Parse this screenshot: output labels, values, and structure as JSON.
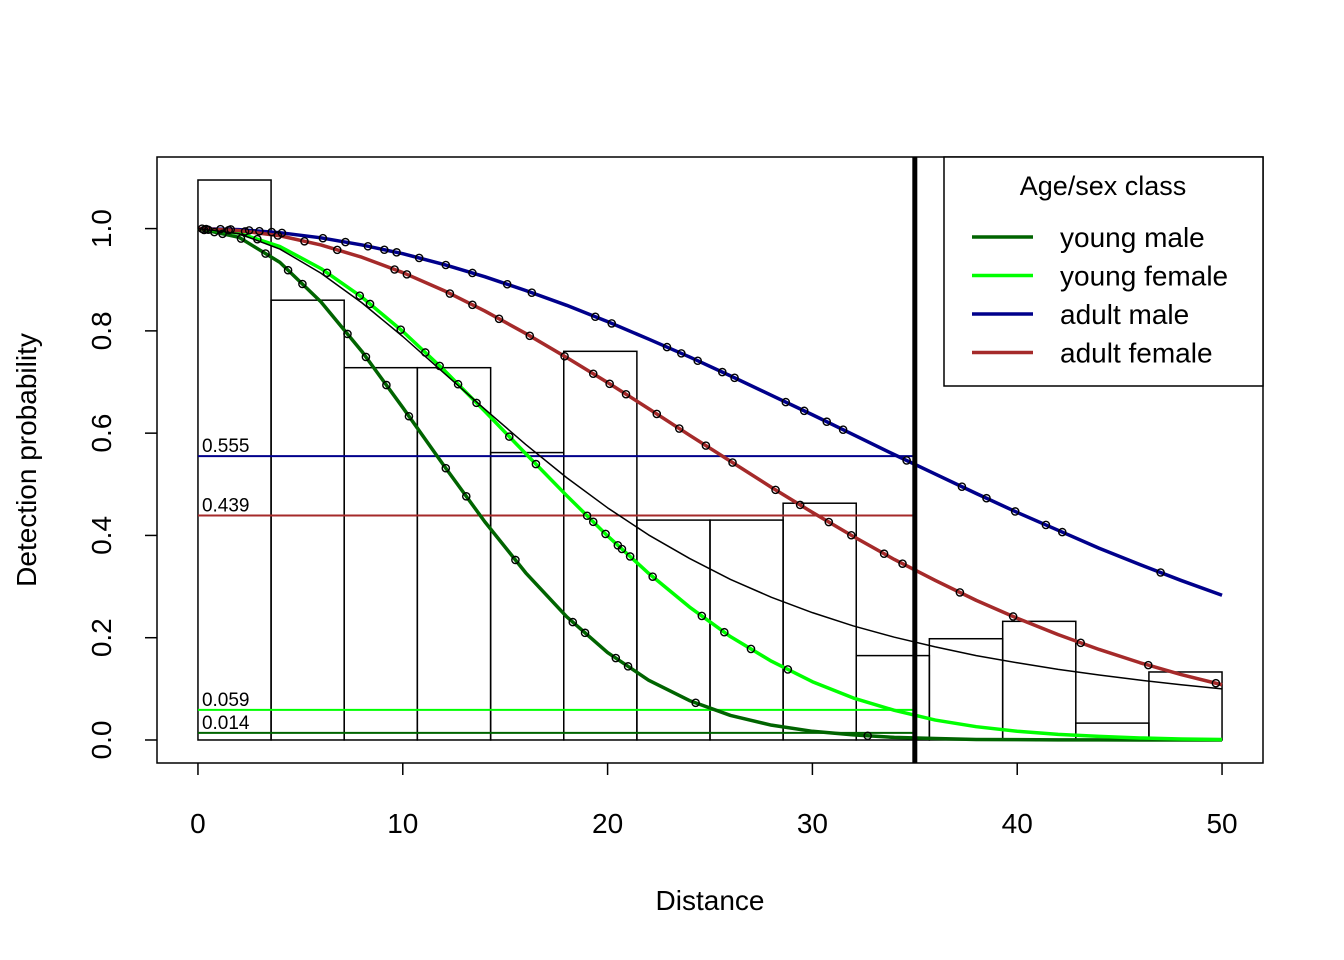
{
  "chart_data": {
    "type": "line",
    "title": "",
    "xlabel": "Distance",
    "ylabel": "Detection probability",
    "xlim": [
      -2,
      52
    ],
    "ylim": [
      -0.045,
      1.14
    ],
    "x_ticks": [
      0,
      10,
      20,
      30,
      40,
      50
    ],
    "x_tick_labels": [
      "0",
      "10",
      "20",
      "30",
      "40",
      "50"
    ],
    "y_ticks": [
      0.0,
      0.2,
      0.4,
      0.6,
      0.8,
      1.0
    ],
    "y_tick_labels": [
      "0.0",
      "0.2",
      "0.4",
      "0.6",
      "0.8",
      "1.0"
    ],
    "grid": false,
    "legend": {
      "title": "Age/sex class",
      "placement": "top-right",
      "entries": [
        "young male",
        "young female",
        "adult male",
        "adult female"
      ]
    },
    "colors": {
      "young_male": "#006400",
      "young_female": "#00ff00",
      "adult_male": "#00008b",
      "adult_female": "#a52a2a",
      "average": "#000000",
      "truncation": "#000000"
    },
    "histogram": {
      "bin_edges": [
        0,
        3.57,
        7.14,
        10.71,
        14.29,
        17.86,
        21.43,
        25.0,
        28.57,
        32.14,
        35.71,
        39.29,
        42.86,
        46.43,
        50.0
      ],
      "heights": [
        1.095,
        0.86,
        0.728,
        0.728,
        0.562,
        0.76,
        0.43,
        0.43,
        0.463,
        0.165,
        0.198,
        0.232,
        0.033,
        0.133
      ]
    },
    "series": [
      {
        "name": "young male",
        "color": "#006400",
        "x": [
          0,
          2,
          4,
          6,
          8,
          10,
          12,
          14,
          16,
          18,
          20,
          22,
          24,
          26,
          28,
          30,
          32,
          34,
          36,
          38,
          40,
          42,
          44,
          46,
          48,
          50
        ],
        "y": [
          1.0,
          0.983,
          0.934,
          0.857,
          0.76,
          0.65,
          0.537,
          0.427,
          0.327,
          0.241,
          0.171,
          0.117,
          0.077,
          0.048,
          0.029,
          0.017,
          0.01,
          0.005,
          0.003,
          0.001,
          0.0007,
          0.0003,
          0.0001,
          0.0,
          0.0,
          0.0
        ]
      },
      {
        "name": "young female",
        "color": "#00ff00",
        "x": [
          0,
          2,
          4,
          6,
          8,
          10,
          12,
          14,
          16,
          18,
          20,
          22,
          24,
          26,
          28,
          30,
          32,
          34,
          36,
          38,
          40,
          42,
          44,
          46,
          48,
          50
        ],
        "y": [
          1.0,
          0.991,
          0.965,
          0.922,
          0.866,
          0.799,
          0.724,
          0.643,
          0.56,
          0.478,
          0.399,
          0.326,
          0.26,
          0.202,
          0.154,
          0.114,
          0.082,
          0.058,
          0.039,
          0.026,
          0.017,
          0.011,
          0.007,
          0.004,
          0.002,
          0.001
        ]
      },
      {
        "name": "adult male",
        "color": "#00008b",
        "x": [
          0,
          2,
          4,
          6,
          8,
          10,
          12,
          14,
          16,
          18,
          20,
          22,
          24,
          26,
          28,
          30,
          32,
          34,
          36,
          38,
          40,
          42,
          44,
          46,
          48,
          50
        ],
        "y": [
          1.0,
          0.998,
          0.992,
          0.982,
          0.968,
          0.951,
          0.93,
          0.906,
          0.879,
          0.85,
          0.818,
          0.784,
          0.749,
          0.712,
          0.674,
          0.636,
          0.597,
          0.558,
          0.52,
          0.482,
          0.445,
          0.41,
          0.375,
          0.343,
          0.312,
          0.283
        ]
      },
      {
        "name": "adult female",
        "color": "#a52a2a",
        "x": [
          0,
          2,
          4,
          6,
          8,
          10,
          12,
          14,
          16,
          18,
          20,
          22,
          24,
          26,
          28,
          30,
          32,
          34,
          36,
          38,
          40,
          42,
          44,
          46,
          48,
          50
        ],
        "y": [
          1.0,
          0.996,
          0.986,
          0.968,
          0.944,
          0.914,
          0.879,
          0.839,
          0.795,
          0.748,
          0.699,
          0.648,
          0.596,
          0.545,
          0.494,
          0.445,
          0.398,
          0.353,
          0.312,
          0.273,
          0.238,
          0.206,
          0.177,
          0.151,
          0.128,
          0.108
        ]
      },
      {
        "name": "",
        "color": "#000000",
        "x": [
          0,
          2,
          4,
          6,
          8,
          10,
          12,
          14,
          16,
          18,
          20,
          22,
          24,
          26,
          28,
          30,
          32,
          34,
          36,
          38,
          40,
          42,
          44,
          46,
          48,
          50
        ],
        "y": [
          1.0,
          0.99,
          0.96,
          0.913,
          0.855,
          0.789,
          0.718,
          0.647,
          0.578,
          0.513,
          0.454,
          0.401,
          0.355,
          0.314,
          0.279,
          0.249,
          0.223,
          0.201,
          0.182,
          0.165,
          0.151,
          0.138,
          0.127,
          0.117,
          0.108,
          0.1
        ]
      }
    ],
    "truncation_distance": 35,
    "reference_lines": [
      {
        "value": 0.555,
        "label": "0.555",
        "color": "#00008b"
      },
      {
        "value": 0.439,
        "label": "0.439",
        "color": "#a52a2a"
      },
      {
        "value": 0.059,
        "label": "0.059",
        "color": "#00ff00"
      },
      {
        "value": 0.014,
        "label": "0.014",
        "color": "#006400"
      }
    ],
    "observations": {
      "young_male": [
        0.3,
        0.8,
        1.2,
        2.1,
        3.3,
        4.4,
        5.1,
        7.3,
        8.2,
        9.2,
        10.3,
        12.1,
        13.1,
        15.5,
        18.3,
        18.9,
        20.4,
        21.0,
        24.3,
        32.7
      ],
      "young_female": [
        0.5,
        2.9,
        6.3,
        7.9,
        8.4,
        9.9,
        11.1,
        11.8,
        12.7,
        13.6,
        15.2,
        16.5,
        19.0,
        19.3,
        19.9,
        20.5,
        20.7,
        21.1,
        22.2,
        24.6,
        25.7,
        27.0,
        28.8
      ],
      "adult_male": [
        0.2,
        1.1,
        1.6,
        2.5,
        3.0,
        3.6,
        4.1,
        6.1,
        7.2,
        8.3,
        9.1,
        9.7,
        10.8,
        12.1,
        13.4,
        15.1,
        16.3,
        19.4,
        20.2,
        22.9,
        23.6,
        24.4,
        25.6,
        26.2,
        28.7,
        29.6,
        30.7,
        31.5,
        34.6,
        37.3,
        38.5,
        39.9,
        41.4,
        42.2,
        47.0
      ],
      "adult_female": [
        0.4,
        1.5,
        2.3,
        3.9,
        5.2,
        6.8,
        9.6,
        10.2,
        12.3,
        13.4,
        14.7,
        16.2,
        17.9,
        19.3,
        20.1,
        20.9,
        22.4,
        23.5,
        24.8,
        26.1,
        28.2,
        29.4,
        30.8,
        31.9,
        33.5,
        34.4,
        37.2,
        39.8,
        43.1,
        46.4,
        49.7
      ]
    }
  }
}
